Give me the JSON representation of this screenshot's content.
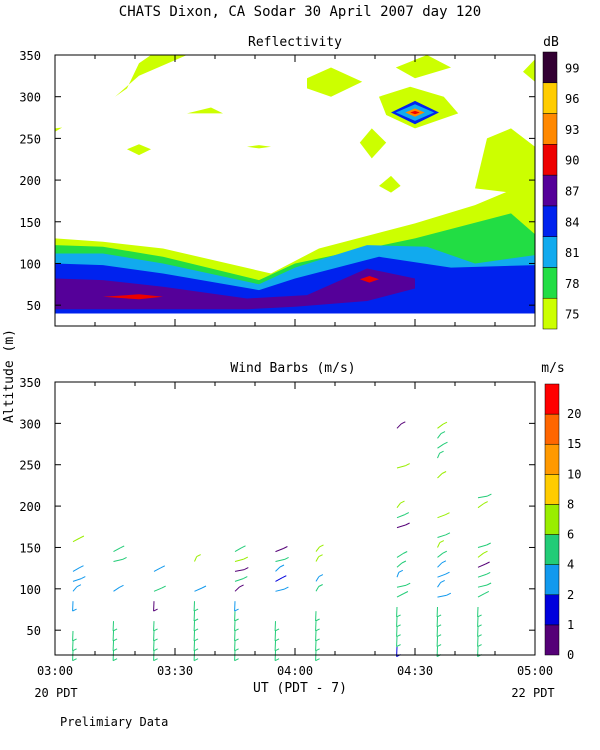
{
  "title": "CHATS Dixon, CA  Sodar  30 April 2007  day 120",
  "footer_note": "Prelimiary Data",
  "y_axis_label": "Altitude (m)",
  "x_axis_label": "UT  (PDT - 7)",
  "x_left_note": "20 PDT",
  "x_right_note": "22 PDT",
  "x_ticks": [
    "03:00",
    "03:30",
    "04:00",
    "04:30",
    "05:00"
  ],
  "chart_data": [
    {
      "type": "heatmap",
      "title": "Reflectivity",
      "colorbar_unit": "dB",
      "x_range": [
        "03:00",
        "05:00"
      ],
      "ylim": [
        25,
        350
      ],
      "y_ticks": [
        50,
        100,
        150,
        200,
        250,
        300,
        350
      ],
      "levels": [
        {
          "label": "75",
          "color": "#ccff00"
        },
        {
          "label": "78",
          "color": "#22dd44"
        },
        {
          "label": "81",
          "color": "#11aaee"
        },
        {
          "label": "84",
          "color": "#0022ee"
        },
        {
          "label": "87",
          "color": "#550099"
        },
        {
          "label": "90",
          "color": "#ee0000"
        },
        {
          "label": "93",
          "color": "#ff8800"
        },
        {
          "label": "96",
          "color": "#ffcc00"
        },
        {
          "label": "99",
          "color": "#330033"
        }
      ],
      "regions": [
        {
          "level": 0,
          "points": [
            [
              3.0,
              130
            ],
            [
              3.2,
              126
            ],
            [
              3.45,
              118
            ],
            [
              3.9,
              88
            ],
            [
              4.1,
              118
            ],
            [
              4.5,
              148
            ],
            [
              4.75,
              170
            ],
            [
              5.0,
              200
            ],
            [
              5.0,
              40
            ],
            [
              3.0,
              40
            ]
          ]
        },
        {
          "level": 1,
          "points": [
            [
              3.0,
              122
            ],
            [
              3.2,
              120
            ],
            [
              3.45,
              108
            ],
            [
              3.85,
              80
            ],
            [
              4.0,
              100
            ],
            [
              4.5,
              130
            ],
            [
              4.9,
              160
            ],
            [
              5.0,
              135
            ],
            [
              5.0,
              40
            ],
            [
              3.0,
              40
            ]
          ]
        },
        {
          "level": 2,
          "points": [
            [
              3.0,
              112
            ],
            [
              3.2,
              112
            ],
            [
              3.45,
              100
            ],
            [
              3.85,
              75
            ],
            [
              4.0,
              95
            ],
            [
              4.3,
              122
            ],
            [
              4.55,
              120
            ],
            [
              4.75,
              100
            ],
            [
              5.0,
              110
            ],
            [
              5.0,
              40
            ],
            [
              3.0,
              40
            ]
          ]
        },
        {
          "level": 3,
          "points": [
            [
              3.0,
              100
            ],
            [
              3.2,
              98
            ],
            [
              3.45,
              88
            ],
            [
              3.85,
              68
            ],
            [
              4.0,
              82
            ],
            [
              4.35,
              108
            ],
            [
              4.65,
              95
            ],
            [
              5.0,
              98
            ],
            [
              5.0,
              40
            ],
            [
              3.0,
              40
            ]
          ]
        },
        {
          "level": 4,
          "points": [
            [
              3.0,
              82
            ],
            [
              3.2,
              80
            ],
            [
              3.45,
              72
            ],
            [
              3.8,
              58
            ],
            [
              4.05,
              62
            ],
            [
              4.3,
              94
            ],
            [
              4.5,
              82
            ],
            [
              4.5,
              70
            ],
            [
              4.3,
              55
            ],
            [
              4.0,
              48
            ],
            [
              3.8,
              45
            ],
            [
              3.5,
              45
            ],
            [
              3.0,
              45
            ]
          ]
        },
        {
          "level": 5,
          "points": [
            [
              3.2,
              60
            ],
            [
              3.35,
              63
            ],
            [
              3.45,
              60
            ],
            [
              3.35,
              57
            ]
          ]
        },
        {
          "level": 5,
          "points": [
            [
              4.27,
              81
            ],
            [
              4.31,
              85
            ],
            [
              4.35,
              81
            ],
            [
              4.31,
              77
            ]
          ]
        },
        {
          "level": 0,
          "points": [
            [
              3.35,
              325
            ],
            [
              3.55,
              350
            ],
            [
              3.4,
              350
            ],
            [
              3.35,
              340
            ],
            [
              3.3,
              310
            ],
            [
              3.25,
              300
            ]
          ]
        },
        {
          "level": 0,
          "points": [
            [
              4.05,
              322
            ],
            [
              4.15,
              335
            ],
            [
              4.28,
              318
            ],
            [
              4.15,
              300
            ],
            [
              4.05,
              310
            ]
          ]
        },
        {
          "level": 0,
          "points": [
            [
              4.42,
              335
            ],
            [
              4.55,
              350
            ],
            [
              4.65,
              335
            ],
            [
              4.5,
              322
            ]
          ]
        },
        {
          "level": 0,
          "points": [
            [
              4.35,
              300
            ],
            [
              4.48,
              312
            ],
            [
              4.62,
              300
            ],
            [
              4.68,
              280
            ],
            [
              4.5,
              262
            ],
            [
              4.38,
              278
            ]
          ]
        },
        {
          "level": 3,
          "points": [
            [
              4.4,
              281
            ],
            [
              4.5,
              295
            ],
            [
              4.6,
              281
            ],
            [
              4.5,
              267
            ]
          ]
        },
        {
          "level": 2,
          "points": [
            [
              4.42,
              281
            ],
            [
              4.5,
              291
            ],
            [
              4.58,
              281
            ],
            [
              4.5,
              271
            ]
          ]
        },
        {
          "level": 6,
          "points": [
            [
              4.46,
              281
            ],
            [
              4.5,
              286
            ],
            [
              4.54,
              281
            ],
            [
              4.5,
              276
            ]
          ]
        },
        {
          "level": 5,
          "points": [
            [
              4.48,
              281
            ],
            [
              4.5,
              283
            ],
            [
              4.52,
              281
            ],
            [
              4.5,
              279
            ]
          ]
        },
        {
          "level": 0,
          "points": [
            [
              4.75,
              190
            ],
            [
              4.8,
              250
            ],
            [
              4.9,
              262
            ],
            [
              5.0,
              240
            ],
            [
              5.0,
              200
            ],
            [
              4.9,
              185
            ]
          ]
        },
        {
          "level": 0,
          "points": [
            [
              4.95,
              330
            ],
            [
              5.0,
              345
            ],
            [
              5.0,
              318
            ]
          ]
        },
        {
          "level": 0,
          "points": [
            [
              3.55,
              280
            ],
            [
              3.65,
              287
            ],
            [
              3.7,
              280
            ]
          ]
        },
        {
          "level": 0,
          "points": [
            [
              3.3,
              237
            ],
            [
              3.35,
              243
            ],
            [
              3.4,
              237
            ],
            [
              3.35,
              230
            ]
          ]
        },
        {
          "level": 0,
          "points": [
            [
              3.8,
              240
            ],
            [
              3.85,
              242
            ],
            [
              3.9,
              240
            ],
            [
              3.85,
              238
            ]
          ]
        },
        {
          "level": 0,
          "points": [
            [
              4.27,
              245
            ],
            [
              4.32,
              262
            ],
            [
              4.38,
              245
            ],
            [
              4.32,
              226
            ]
          ]
        },
        {
          "level": 0,
          "points": [
            [
              4.35,
              193
            ],
            [
              4.4,
              205
            ],
            [
              4.44,
              193
            ],
            [
              4.4,
              185
            ]
          ]
        },
        {
          "level": 0,
          "points": [
            [
              3.0,
              262
            ],
            [
              3.03,
              263
            ],
            [
              3.0,
              258
            ]
          ]
        }
      ]
    },
    {
      "type": "scatter",
      "title": "Wind Barbs (m/s)",
      "colorbar_unit": "m/s",
      "x_range": [
        "03:00",
        "05:00"
      ],
      "ylim": [
        20,
        350
      ],
      "y_ticks": [
        50,
        100,
        150,
        200,
        250,
        300,
        350
      ],
      "levels": [
        {
          "label": "0",
          "color": "#550077"
        },
        {
          "label": "1",
          "color": "#0000dd"
        },
        {
          "label": "2",
          "color": "#1199ee"
        },
        {
          "label": "4",
          "color": "#22cc77"
        },
        {
          "label": "6",
          "color": "#99ee00"
        },
        {
          "label": "8",
          "color": "#ffcc00"
        },
        {
          "label": "10",
          "color": "#ff9900"
        },
        {
          "label": "15",
          "color": "#ff6600"
        },
        {
          "label": "20",
          "color": "#ff0000"
        }
      ]
    }
  ]
}
